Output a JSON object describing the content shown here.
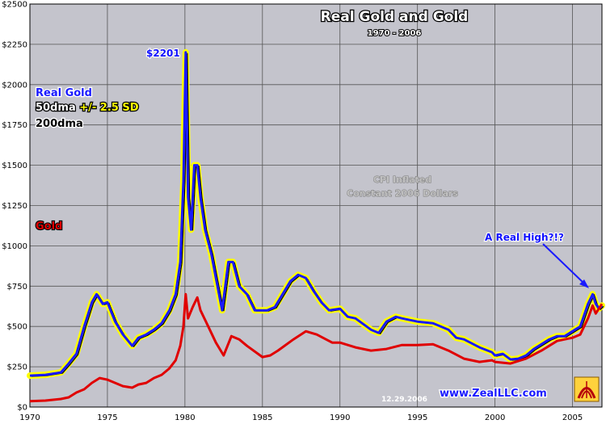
{
  "chart_data": {
    "type": "line",
    "title": "Real Gold and Gold",
    "subtitle": "1970 - 2006",
    "xlabel": "",
    "ylabel": "",
    "xlim": [
      1970,
      2006.9
    ],
    "ylim": [
      0,
      2500
    ],
    "x_ticks": [
      "1970",
      "1975",
      "1980",
      "1985",
      "1990",
      "1995",
      "2000",
      "2005"
    ],
    "y_ticks": [
      "$0",
      "$250",
      "$500",
      "$750",
      "$1000",
      "$1250",
      "$1500",
      "$1750",
      "$2000",
      "$2250",
      "$2500"
    ],
    "grid": true,
    "legend": {
      "placement": "left",
      "items": [
        {
          "text": "Real Gold",
          "color": "#1a1aff"
        },
        {
          "text_parts": [
            "50dma ",
            "+/- 2.5 SD"
          ],
          "colors": [
            "#ffffff",
            "#ffff00"
          ]
        },
        {
          "text": "200dma",
          "color": "#000000"
        }
      ]
    },
    "series_labels": [
      {
        "text": "Gold",
        "color": "#e00000"
      }
    ],
    "annotations": [
      {
        "text": "$2201"
      },
      {
        "text": "CPI Inflated"
      },
      {
        "text": "Constant 2006 Dollars"
      },
      {
        "text": "A Real High?!?"
      }
    ],
    "date_stamp": "12.29.2006",
    "source": "www.ZealLLC.com",
    "colors": {
      "plot_background": "#c4c4cc",
      "real_gold": "#1a1aff",
      "bands": "#ffff00",
      "dma200": "#000000",
      "gold": "#e00000",
      "grid": "#555555"
    },
    "series": [
      {
        "name": "Real Gold",
        "x": [
          1970,
          1971,
          1972,
          1972.5,
          1973,
          1973.5,
          1974,
          1974.3,
          1974.7,
          1975,
          1975.5,
          1976,
          1976.6,
          1977,
          1977.5,
          1978,
          1978.5,
          1979,
          1979.4,
          1979.7,
          1979.9,
          1980.05,
          1980.2,
          1980.4,
          1980.6,
          1980.8,
          1981,
          1981.3,
          1981.7,
          1982,
          1982.4,
          1982.8,
          1983.1,
          1983.5,
          1984,
          1984.5,
          1985,
          1985.3,
          1985.8,
          1986.3,
          1986.8,
          1987.3,
          1987.8,
          1988.3,
          1988.8,
          1989.3,
          1990,
          1990.5,
          1991,
          1992,
          1992.5,
          1993,
          1993.6,
          1994,
          1995,
          1996,
          1997,
          1997.5,
          1998,
          1999,
          1999.8,
          2000,
          2000.5,
          2001,
          2001.5,
          2002,
          2002.5,
          2003,
          2003.5,
          2004,
          2004.5,
          2005,
          2005.5,
          2006,
          2006.3,
          2006.5,
          2006.7,
          2006.9
        ],
        "y": [
          195,
          200,
          215,
          270,
          330,
          500,
          650,
          700,
          640,
          650,
          530,
          450,
          380,
          430,
          450,
          480,
          520,
          600,
          700,
          900,
          1400,
          2201,
          1300,
          1100,
          1500,
          1500,
          1300,
          1100,
          950,
          800,
          600,
          900,
          900,
          750,
          700,
          600,
          600,
          600,
          620,
          700,
          780,
          820,
          800,
          720,
          650,
          600,
          610,
          560,
          550,
          480,
          460,
          530,
          560,
          550,
          530,
          520,
          480,
          430,
          420,
          370,
          340,
          320,
          330,
          295,
          300,
          320,
          360,
          390,
          420,
          440,
          440,
          470,
          500,
          640,
          700,
          640,
          610,
          630
        ]
      },
      {
        "name": "Gold",
        "x": [
          1970,
          1971,
          1972,
          1972.5,
          1973,
          1973.5,
          1974,
          1974.5,
          1975,
          1975.5,
          1976,
          1976.6,
          1977,
          1977.5,
          1978,
          1978.5,
          1979,
          1979.4,
          1979.7,
          1979.9,
          1980.05,
          1980.2,
          1980.5,
          1980.8,
          1981,
          1981.5,
          1982,
          1982.5,
          1983,
          1983.5,
          1984,
          1985,
          1985.5,
          1986,
          1987,
          1987.8,
          1988.5,
          1989.5,
          1990,
          1991,
          1992,
          1993,
          1994,
          1995,
          1996,
          1997,
          1998,
          1999,
          1999.8,
          2000,
          2001,
          2002,
          2003,
          2004,
          2005,
          2005.5,
          2006,
          2006.3,
          2006.5,
          2006.9
        ],
        "y": [
          36,
          40,
          50,
          60,
          90,
          110,
          150,
          180,
          170,
          150,
          130,
          120,
          140,
          150,
          180,
          200,
          240,
          290,
          380,
          500,
          700,
          550,
          620,
          680,
          600,
          500,
          400,
          320,
          440,
          420,
          380,
          310,
          320,
          350,
          420,
          470,
          450,
          400,
          400,
          370,
          350,
          360,
          385,
          385,
          390,
          350,
          300,
          280,
          290,
          280,
          270,
          300,
          350,
          410,
          430,
          450,
          550,
          630,
          580,
          640
        ]
      }
    ]
  }
}
